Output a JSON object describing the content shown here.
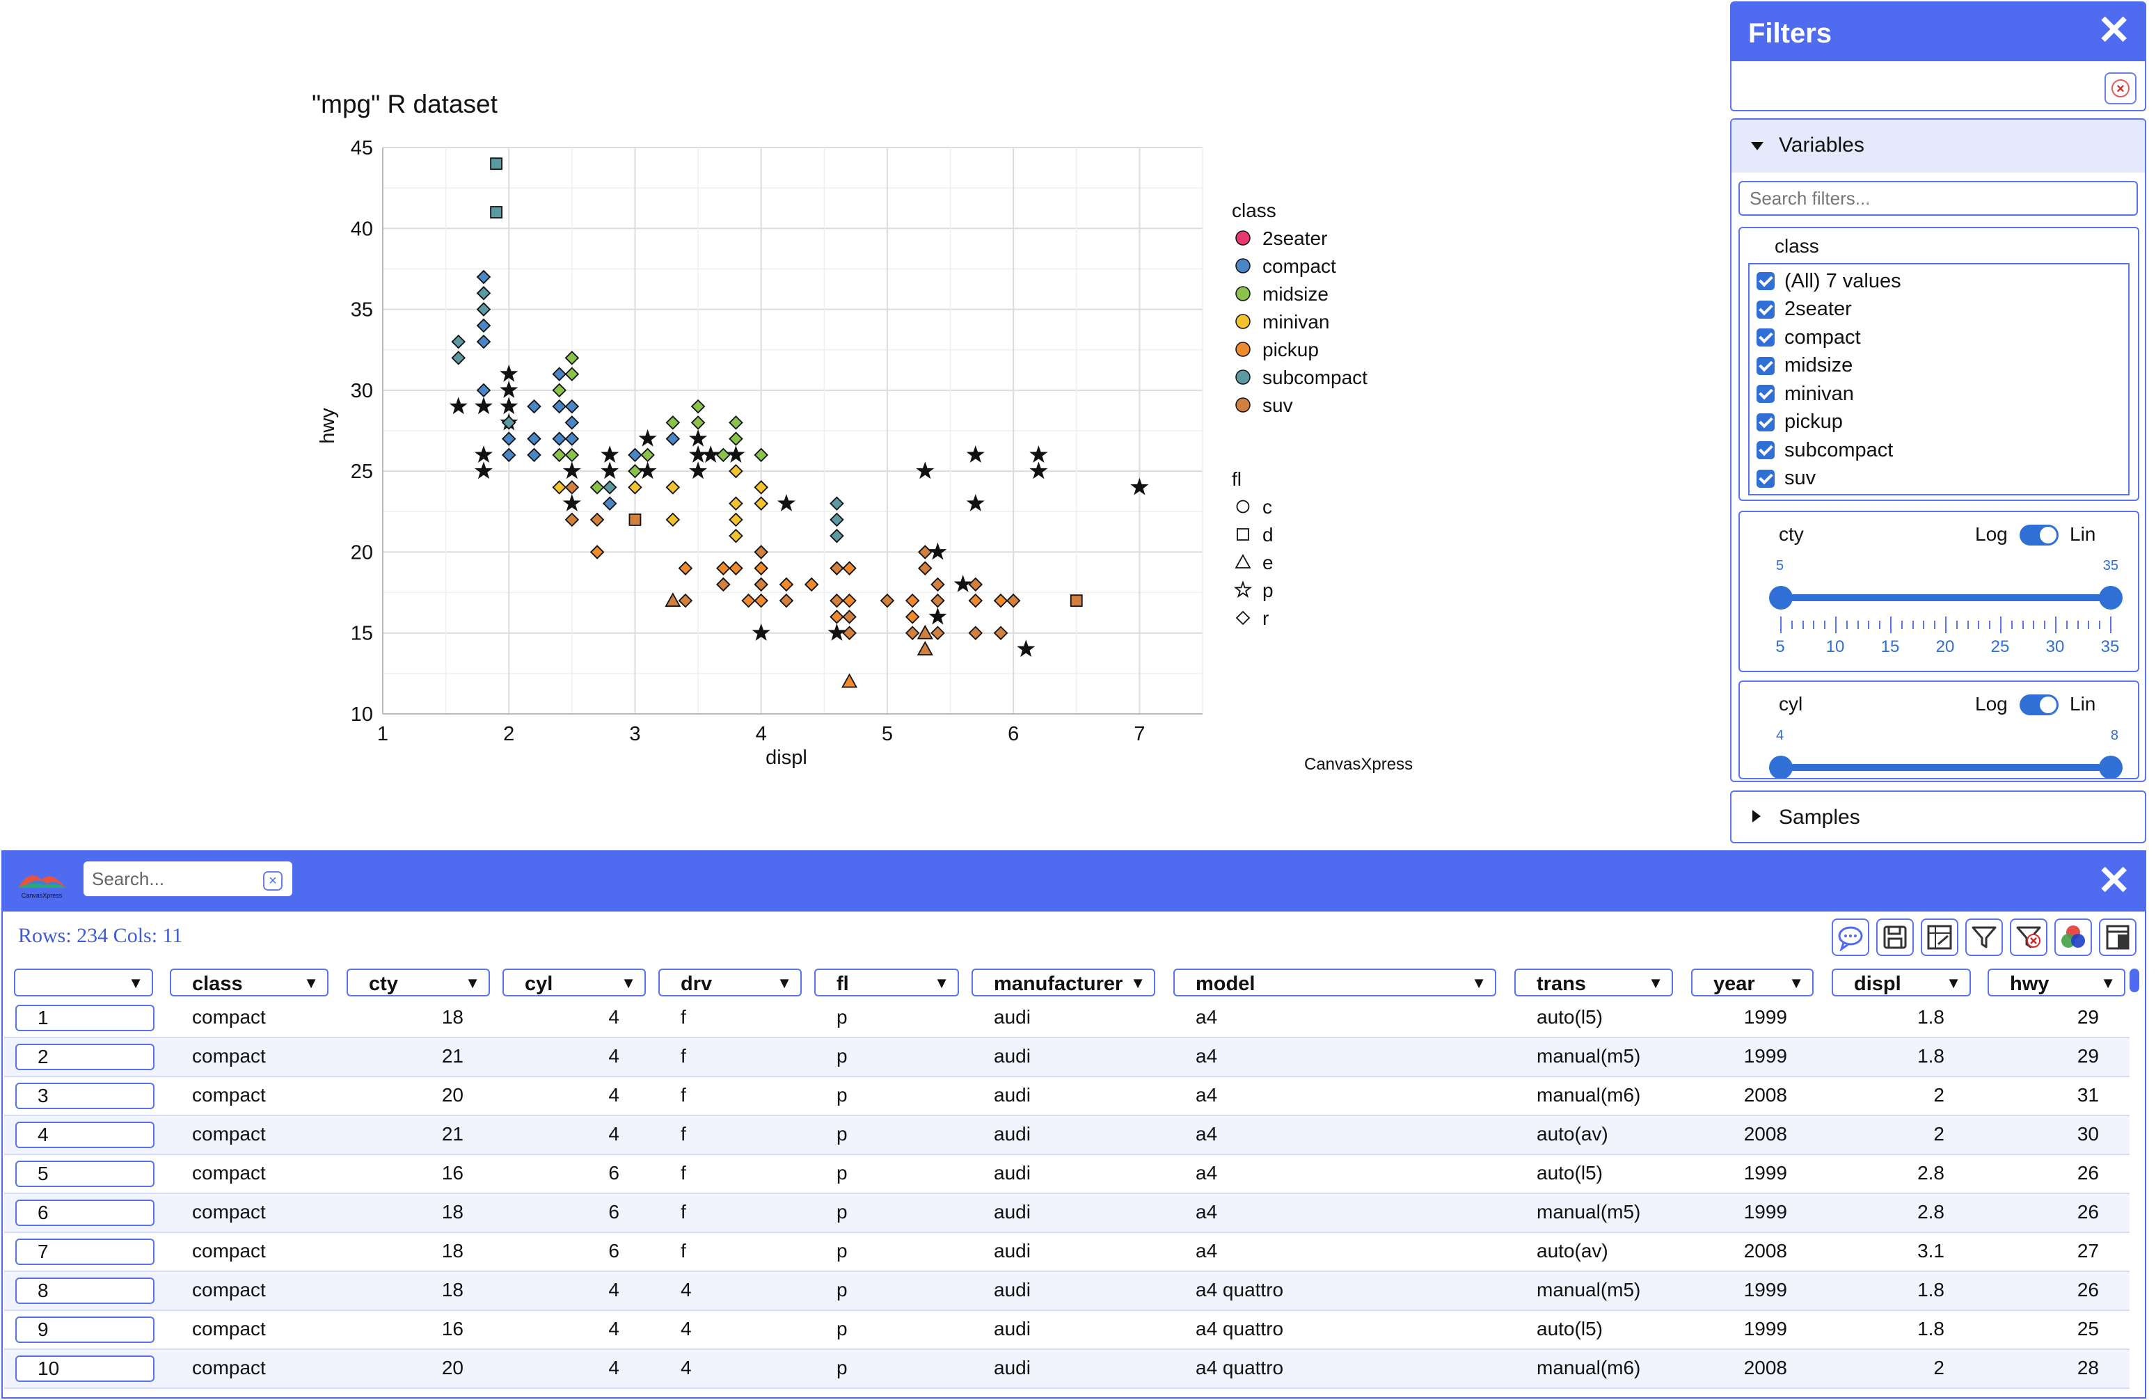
{
  "chart_data": {
    "type": "scatter",
    "title": "\"mpg\" R dataset",
    "xlabel": "displ",
    "ylabel": "hwy",
    "xlim": [
      1,
      7.5
    ],
    "ylim": [
      10,
      45
    ],
    "xticks": [
      1,
      2,
      3,
      4,
      5,
      6,
      7
    ],
    "yticks": [
      10,
      15,
      20,
      25,
      30,
      35,
      40,
      45
    ],
    "grid": true,
    "credit": "CanvasXpress",
    "legend_class": {
      "title": "class",
      "items": [
        {
          "label": "2seater",
          "color": "#e8386d"
        },
        {
          "label": "compact",
          "color": "#4a86c6"
        },
        {
          "label": "midsize",
          "color": "#8bc34a"
        },
        {
          "label": "minivan",
          "color": "#f2c22f"
        },
        {
          "label": "pickup",
          "color": "#ef8a2f"
        },
        {
          "label": "subcompact",
          "color": "#5b9aa0"
        },
        {
          "label": "suv",
          "color": "#d2803e"
        }
      ]
    },
    "legend_fl": {
      "title": "fl",
      "items": [
        {
          "label": "c",
          "shape": "circle"
        },
        {
          "label": "d",
          "shape": "square"
        },
        {
          "label": "e",
          "shape": "triangle"
        },
        {
          "label": "p",
          "shape": "star"
        },
        {
          "label": "r",
          "shape": "diamond"
        }
      ]
    },
    "points": [
      {
        "x": 1.9,
        "y": 44,
        "class": "subcompact",
        "fl": "d"
      },
      {
        "x": 1.9,
        "y": 41,
        "class": "subcompact",
        "fl": "d"
      },
      {
        "x": 1.8,
        "y": 37,
        "class": "compact",
        "fl": "r"
      },
      {
        "x": 1.8,
        "y": 36,
        "class": "subcompact",
        "fl": "r"
      },
      {
        "x": 1.8,
        "y": 35,
        "class": "subcompact",
        "fl": "r"
      },
      {
        "x": 1.8,
        "y": 34,
        "class": "compact",
        "fl": "r"
      },
      {
        "x": 1.8,
        "y": 33,
        "class": "compact",
        "fl": "r"
      },
      {
        "x": 1.6,
        "y": 33,
        "class": "subcompact",
        "fl": "r"
      },
      {
        "x": 1.6,
        "y": 32,
        "class": "subcompact",
        "fl": "r"
      },
      {
        "x": 1.8,
        "y": 30,
        "class": "compact",
        "fl": "r"
      },
      {
        "x": 1.6,
        "y": 29,
        "class": "compact",
        "fl": "p"
      },
      {
        "x": 1.8,
        "y": 29,
        "class": "compact",
        "fl": "p"
      },
      {
        "x": 1.8,
        "y": 26,
        "class": "compact",
        "fl": "p"
      },
      {
        "x": 1.8,
        "y": 25,
        "class": "compact",
        "fl": "p"
      },
      {
        "x": 2.0,
        "y": 31,
        "class": "compact",
        "fl": "p"
      },
      {
        "x": 2.0,
        "y": 30,
        "class": "compact",
        "fl": "p"
      },
      {
        "x": 2.0,
        "y": 29,
        "class": "compact",
        "fl": "p"
      },
      {
        "x": 2.0,
        "y": 28,
        "class": "compact",
        "fl": "p"
      },
      {
        "x": 2.0,
        "y": 27,
        "class": "compact",
        "fl": "r"
      },
      {
        "x": 2.0,
        "y": 26,
        "class": "compact",
        "fl": "r"
      },
      {
        "x": 2.0,
        "y": 28,
        "class": "subcompact",
        "fl": "r"
      },
      {
        "x": 2.2,
        "y": 29,
        "class": "compact",
        "fl": "r"
      },
      {
        "x": 2.2,
        "y": 27,
        "class": "compact",
        "fl": "r"
      },
      {
        "x": 2.2,
        "y": 26,
        "class": "compact",
        "fl": "r"
      },
      {
        "x": 2.4,
        "y": 31,
        "class": "compact",
        "fl": "r"
      },
      {
        "x": 2.4,
        "y": 30,
        "class": "midsize",
        "fl": "r"
      },
      {
        "x": 2.4,
        "y": 29,
        "class": "compact",
        "fl": "r"
      },
      {
        "x": 2.4,
        "y": 27,
        "class": "compact",
        "fl": "r"
      },
      {
        "x": 2.4,
        "y": 26,
        "class": "midsize",
        "fl": "r"
      },
      {
        "x": 2.4,
        "y": 24,
        "class": "minivan",
        "fl": "r"
      },
      {
        "x": 2.5,
        "y": 32,
        "class": "midsize",
        "fl": "r"
      },
      {
        "x": 2.5,
        "y": 31,
        "class": "midsize",
        "fl": "r"
      },
      {
        "x": 2.5,
        "y": 29,
        "class": "compact",
        "fl": "r"
      },
      {
        "x": 2.5,
        "y": 28,
        "class": "compact",
        "fl": "r"
      },
      {
        "x": 2.5,
        "y": 27,
        "class": "compact",
        "fl": "r"
      },
      {
        "x": 2.5,
        "y": 26,
        "class": "midsize",
        "fl": "r"
      },
      {
        "x": 2.5,
        "y": 25,
        "class": "compact",
        "fl": "p"
      },
      {
        "x": 2.5,
        "y": 24,
        "class": "suv",
        "fl": "r"
      },
      {
        "x": 2.5,
        "y": 23,
        "class": "compact",
        "fl": "p"
      },
      {
        "x": 2.5,
        "y": 22,
        "class": "suv",
        "fl": "r"
      },
      {
        "x": 2.7,
        "y": 24,
        "class": "midsize",
        "fl": "r"
      },
      {
        "x": 2.7,
        "y": 22,
        "class": "suv",
        "fl": "r"
      },
      {
        "x": 2.7,
        "y": 20,
        "class": "pickup",
        "fl": "r"
      },
      {
        "x": 2.8,
        "y": 26,
        "class": "compact",
        "fl": "p"
      },
      {
        "x": 2.8,
        "y": 25,
        "class": "compact",
        "fl": "p"
      },
      {
        "x": 2.8,
        "y": 24,
        "class": "subcompact",
        "fl": "r"
      },
      {
        "x": 2.8,
        "y": 23,
        "class": "compact",
        "fl": "r"
      },
      {
        "x": 3.0,
        "y": 26,
        "class": "compact",
        "fl": "r"
      },
      {
        "x": 3.0,
        "y": 25,
        "class": "midsize",
        "fl": "r"
      },
      {
        "x": 3.0,
        "y": 24,
        "class": "minivan",
        "fl": "r"
      },
      {
        "x": 3.0,
        "y": 22,
        "class": "suv",
        "fl": "d"
      },
      {
        "x": 3.1,
        "y": 27,
        "class": "midsize",
        "fl": "p"
      },
      {
        "x": 3.1,
        "y": 26,
        "class": "midsize",
        "fl": "r"
      },
      {
        "x": 3.1,
        "y": 25,
        "class": "midsize",
        "fl": "p"
      },
      {
        "x": 3.3,
        "y": 28,
        "class": "midsize",
        "fl": "r"
      },
      {
        "x": 3.3,
        "y": 27,
        "class": "compact",
        "fl": "r"
      },
      {
        "x": 3.3,
        "y": 24,
        "class": "minivan",
        "fl": "r"
      },
      {
        "x": 3.3,
        "y": 22,
        "class": "minivan",
        "fl": "r"
      },
      {
        "x": 3.3,
        "y": 17,
        "class": "suv",
        "fl": "e"
      },
      {
        "x": 3.4,
        "y": 19,
        "class": "pickup",
        "fl": "r"
      },
      {
        "x": 3.4,
        "y": 17,
        "class": "suv",
        "fl": "r"
      },
      {
        "x": 3.5,
        "y": 29,
        "class": "midsize",
        "fl": "r"
      },
      {
        "x": 3.5,
        "y": 28,
        "class": "midsize",
        "fl": "r"
      },
      {
        "x": 3.5,
        "y": 27,
        "class": "midsize",
        "fl": "p"
      },
      {
        "x": 3.5,
        "y": 26,
        "class": "midsize",
        "fl": "p"
      },
      {
        "x": 3.5,
        "y": 25,
        "class": "midsize",
        "fl": "p"
      },
      {
        "x": 3.6,
        "y": 26,
        "class": "midsize",
        "fl": "p"
      },
      {
        "x": 3.7,
        "y": 26,
        "class": "midsize",
        "fl": "r"
      },
      {
        "x": 3.7,
        "y": 19,
        "class": "pickup",
        "fl": "r"
      },
      {
        "x": 3.7,
        "y": 18,
        "class": "suv",
        "fl": "r"
      },
      {
        "x": 3.8,
        "y": 28,
        "class": "midsize",
        "fl": "r"
      },
      {
        "x": 3.8,
        "y": 27,
        "class": "midsize",
        "fl": "r"
      },
      {
        "x": 3.8,
        "y": 26,
        "class": "midsize",
        "fl": "p"
      },
      {
        "x": 3.8,
        "y": 25,
        "class": "minivan",
        "fl": "r"
      },
      {
        "x": 3.8,
        "y": 23,
        "class": "minivan",
        "fl": "r"
      },
      {
        "x": 3.8,
        "y": 22,
        "class": "minivan",
        "fl": "r"
      },
      {
        "x": 3.8,
        "y": 21,
        "class": "minivan",
        "fl": "r"
      },
      {
        "x": 3.8,
        "y": 19,
        "class": "pickup",
        "fl": "r"
      },
      {
        "x": 3.9,
        "y": 17,
        "class": "pickup",
        "fl": "r"
      },
      {
        "x": 4.0,
        "y": 26,
        "class": "midsize",
        "fl": "r"
      },
      {
        "x": 4.0,
        "y": 24,
        "class": "minivan",
        "fl": "r"
      },
      {
        "x": 4.0,
        "y": 23,
        "class": "minivan",
        "fl": "r"
      },
      {
        "x": 4.0,
        "y": 20,
        "class": "suv",
        "fl": "r"
      },
      {
        "x": 4.0,
        "y": 19,
        "class": "pickup",
        "fl": "r"
      },
      {
        "x": 4.0,
        "y": 18,
        "class": "suv",
        "fl": "r"
      },
      {
        "x": 4.0,
        "y": 17,
        "class": "pickup",
        "fl": "r"
      },
      {
        "x": 4.0,
        "y": 15,
        "class": "suv",
        "fl": "p"
      },
      {
        "x": 4.2,
        "y": 23,
        "class": "midsize",
        "fl": "p"
      },
      {
        "x": 4.2,
        "y": 18,
        "class": "pickup",
        "fl": "r"
      },
      {
        "x": 4.2,
        "y": 17,
        "class": "suv",
        "fl": "r"
      },
      {
        "x": 4.4,
        "y": 18,
        "class": "pickup",
        "fl": "r"
      },
      {
        "x": 4.6,
        "y": 23,
        "class": "subcompact",
        "fl": "r"
      },
      {
        "x": 4.6,
        "y": 22,
        "class": "subcompact",
        "fl": "r"
      },
      {
        "x": 4.6,
        "y": 21,
        "class": "subcompact",
        "fl": "r"
      },
      {
        "x": 4.6,
        "y": 19,
        "class": "suv",
        "fl": "r"
      },
      {
        "x": 4.6,
        "y": 17,
        "class": "suv",
        "fl": "r"
      },
      {
        "x": 4.6,
        "y": 16,
        "class": "pickup",
        "fl": "r"
      },
      {
        "x": 4.6,
        "y": 15,
        "class": "suv",
        "fl": "p"
      },
      {
        "x": 4.7,
        "y": 19,
        "class": "pickup",
        "fl": "r"
      },
      {
        "x": 4.7,
        "y": 17,
        "class": "pickup",
        "fl": "r"
      },
      {
        "x": 4.7,
        "y": 16,
        "class": "suv",
        "fl": "r"
      },
      {
        "x": 4.7,
        "y": 15,
        "class": "suv",
        "fl": "r"
      },
      {
        "x": 4.7,
        "y": 12,
        "class": "pickup",
        "fl": "e"
      },
      {
        "x": 5.0,
        "y": 17,
        "class": "suv",
        "fl": "r"
      },
      {
        "x": 5.2,
        "y": 17,
        "class": "pickup",
        "fl": "r"
      },
      {
        "x": 5.2,
        "y": 16,
        "class": "pickup",
        "fl": "r"
      },
      {
        "x": 5.2,
        "y": 15,
        "class": "suv",
        "fl": "r"
      },
      {
        "x": 5.3,
        "y": 25,
        "class": "2seater",
        "fl": "p"
      },
      {
        "x": 5.3,
        "y": 20,
        "class": "suv",
        "fl": "r"
      },
      {
        "x": 5.3,
        "y": 19,
        "class": "suv",
        "fl": "r"
      },
      {
        "x": 5.3,
        "y": 15,
        "class": "suv",
        "fl": "e"
      },
      {
        "x": 5.3,
        "y": 14,
        "class": "suv",
        "fl": "e"
      },
      {
        "x": 5.4,
        "y": 20,
        "class": "suv",
        "fl": "p"
      },
      {
        "x": 5.4,
        "y": 18,
        "class": "suv",
        "fl": "r"
      },
      {
        "x": 5.4,
        "y": 17,
        "class": "suv",
        "fl": "r"
      },
      {
        "x": 5.4,
        "y": 16,
        "class": "pickup",
        "fl": "p"
      },
      {
        "x": 5.4,
        "y": 15,
        "class": "suv",
        "fl": "r"
      },
      {
        "x": 5.6,
        "y": 18,
        "class": "suv",
        "fl": "p"
      },
      {
        "x": 5.7,
        "y": 26,
        "class": "2seater",
        "fl": "p"
      },
      {
        "x": 5.7,
        "y": 23,
        "class": "2seater",
        "fl": "p"
      },
      {
        "x": 5.7,
        "y": 18,
        "class": "suv",
        "fl": "r"
      },
      {
        "x": 5.7,
        "y": 17,
        "class": "pickup",
        "fl": "r"
      },
      {
        "x": 5.7,
        "y": 15,
        "class": "suv",
        "fl": "r"
      },
      {
        "x": 5.9,
        "y": 17,
        "class": "pickup",
        "fl": "r"
      },
      {
        "x": 5.9,
        "y": 15,
        "class": "suv",
        "fl": "r"
      },
      {
        "x": 6.0,
        "y": 17,
        "class": "suv",
        "fl": "r"
      },
      {
        "x": 6.1,
        "y": 14,
        "class": "suv",
        "fl": "p"
      },
      {
        "x": 6.2,
        "y": 26,
        "class": "2seater",
        "fl": "p"
      },
      {
        "x": 6.2,
        "y": 25,
        "class": "2seater",
        "fl": "p"
      },
      {
        "x": 6.5,
        "y": 17,
        "class": "suv",
        "fl": "d"
      },
      {
        "x": 7.0,
        "y": 24,
        "class": "2seater",
        "fl": "p"
      }
    ]
  },
  "filters": {
    "title": "Filters",
    "search_placeholder": "Search filters...",
    "variables_label": "Variables",
    "samples_label": "Samples",
    "class_filter": {
      "title": "class",
      "options": [
        "(All) 7 values",
        "2seater",
        "compact",
        "midsize",
        "minivan",
        "pickup",
        "subcompact",
        "suv"
      ]
    },
    "cty_filter": {
      "title": "cty",
      "log": "Log",
      "lin": "Lin",
      "min": 5,
      "max": 35,
      "low": 5,
      "high": 35,
      "ticks": [
        "5",
        "10",
        "15",
        "20",
        "25",
        "30",
        "35"
      ]
    },
    "cyl_filter": {
      "title": "cyl",
      "log": "Log",
      "lin": "Lin",
      "min": 4,
      "max": 8,
      "low": 4,
      "high": 8
    }
  },
  "table": {
    "search_placeholder": "Search...",
    "logo_text": "CanvasXpress",
    "rows_cols": "Rows: 234 Cols: 11",
    "toolbar": [
      "comment-icon",
      "save-icon",
      "export-icon",
      "filter-icon",
      "clear-filter-icon",
      "color-icon",
      "columns-icon"
    ],
    "columns": [
      "",
      "class",
      "cty",
      "cyl",
      "drv",
      "fl",
      "manufacturer",
      "model",
      "trans",
      "year",
      "displ",
      "hwy"
    ],
    "rows": [
      [
        "1",
        "compact",
        "18",
        "4",
        "f",
        "p",
        "audi",
        "a4",
        "auto(l5)",
        "1999",
        "1.8",
        "29"
      ],
      [
        "2",
        "compact",
        "21",
        "4",
        "f",
        "p",
        "audi",
        "a4",
        "manual(m5)",
        "1999",
        "1.8",
        "29"
      ],
      [
        "3",
        "compact",
        "20",
        "4",
        "f",
        "p",
        "audi",
        "a4",
        "manual(m6)",
        "2008",
        "2",
        "31"
      ],
      [
        "4",
        "compact",
        "21",
        "4",
        "f",
        "p",
        "audi",
        "a4",
        "auto(av)",
        "2008",
        "2",
        "30"
      ],
      [
        "5",
        "compact",
        "16",
        "6",
        "f",
        "p",
        "audi",
        "a4",
        "auto(l5)",
        "1999",
        "2.8",
        "26"
      ],
      [
        "6",
        "compact",
        "18",
        "6",
        "f",
        "p",
        "audi",
        "a4",
        "manual(m5)",
        "1999",
        "2.8",
        "26"
      ],
      [
        "7",
        "compact",
        "18",
        "6",
        "f",
        "p",
        "audi",
        "a4",
        "auto(av)",
        "2008",
        "3.1",
        "27"
      ],
      [
        "8",
        "compact",
        "18",
        "4",
        "4",
        "p",
        "audi",
        "a4 quattro",
        "manual(m5)",
        "1999",
        "1.8",
        "26"
      ],
      [
        "9",
        "compact",
        "16",
        "4",
        "4",
        "p",
        "audi",
        "a4 quattro",
        "auto(l5)",
        "1999",
        "1.8",
        "25"
      ],
      [
        "10",
        "compact",
        "20",
        "4",
        "4",
        "p",
        "audi",
        "a4 quattro",
        "manual(m6)",
        "2008",
        "2",
        "28"
      ]
    ]
  }
}
